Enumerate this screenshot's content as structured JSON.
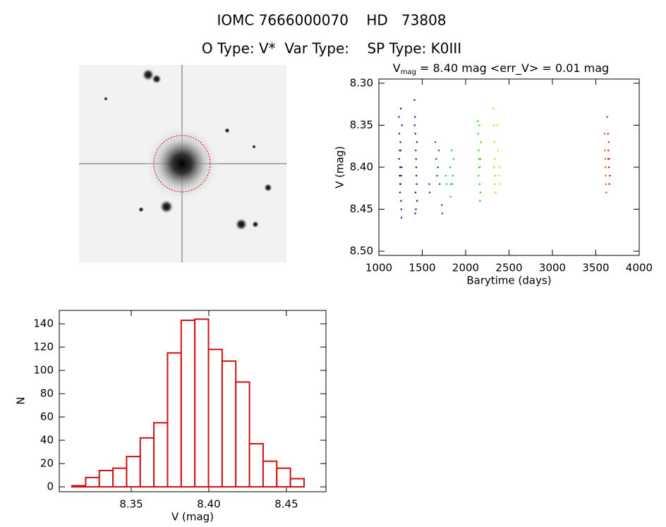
{
  "header": {
    "line1": "IOMC 7666000070    HD   73808",
    "line2": "O Type: V*  Var Type:    SP Type: K0III"
  },
  "chart_data": [
    {
      "type": "scatter",
      "title": {
        "main": "V",
        "sub": "mag",
        "rest": " = 8.40 mag <err_V> = 0.01 mag"
      },
      "x_label": "Barytime (days)",
      "y_label": "V (mag)",
      "xlim": [
        1000,
        4000
      ],
      "xticks": [
        1000,
        1500,
        2000,
        2500,
        3000,
        3500,
        4000
      ],
      "ylim": [
        8.505,
        8.295
      ],
      "yticks": [
        {
          "value": 8.3,
          "label": "8.30"
        },
        {
          "value": 8.35,
          "label": "8.35"
        },
        {
          "value": 8.4,
          "label": "8.40"
        },
        {
          "value": 8.45,
          "label": "8.45"
        },
        {
          "value": 8.5,
          "label": "8.50"
        }
      ],
      "series": [
        {
          "color": "#55007f",
          "x": [
            1230,
            1235,
            1240,
            1245,
            1250,
            1255,
            1260,
            1265,
            1232,
            1238,
            1242,
            1248,
            1252,
            1258,
            1262,
            1244,
            1250,
            1256
          ],
          "values": [
            8.34,
            8.36,
            8.38,
            8.4,
            8.42,
            8.44,
            8.46,
            8.35,
            8.39,
            8.41,
            8.43,
            8.37,
            8.33,
            8.45,
            8.4,
            8.42,
            8.38,
            8.41
          ]
        },
        {
          "color": "#4a00a8",
          "x": [
            1410,
            1415,
            1420,
            1425,
            1430,
            1435,
            1440,
            1418,
            1428,
            1432,
            1422,
            1438,
            1412,
            1426
          ],
          "values": [
            8.32,
            8.34,
            8.36,
            8.38,
            8.4,
            8.42,
            8.44,
            8.455,
            8.39,
            8.41,
            8.43,
            8.37,
            8.35,
            8.45
          ]
        },
        {
          "color": "#1848c8",
          "x": [
            1580,
            1585,
            1650,
            1660,
            1670,
            1680,
            1690,
            1700,
            1725,
            1730
          ],
          "values": [
            8.42,
            8.43,
            8.37,
            8.39,
            8.41,
            8.4,
            8.38,
            8.42,
            8.445,
            8.455
          ]
        },
        {
          "color": "#20b0e8",
          "x": [
            1770,
            1780,
            1820,
            1830,
            1840,
            1850,
            1860,
            1825,
            1845
          ],
          "values": [
            8.41,
            8.42,
            8.4,
            8.42,
            8.38,
            8.41,
            8.39,
            8.435,
            8.42
          ]
        },
        {
          "color": "#20e020",
          "x": [
            2140,
            2145,
            2150,
            2155,
            2160,
            2165,
            2170,
            2175,
            2148,
            2158,
            2168,
            2152,
            2162
          ],
          "values": [
            8.345,
            8.36,
            8.38,
            8.4,
            8.42,
            8.44,
            8.39,
            8.37,
            8.41,
            8.35,
            8.43,
            8.39,
            8.4
          ]
        },
        {
          "color": "#a8e020",
          "x": [
            2320,
            2325,
            2330,
            2335,
            2340,
            2345,
            2328,
            2338
          ],
          "values": [
            8.33,
            8.35,
            8.37,
            8.39,
            8.41,
            8.43,
            8.4,
            8.42
          ]
        },
        {
          "color": "#e8e000",
          "x": [
            2360,
            2370,
            2380,
            2390,
            2395
          ],
          "values": [
            8.35,
            8.38,
            8.41,
            8.4,
            8.42
          ]
        },
        {
          "color": "#e86010",
          "x": [
            3600,
            3605,
            3610,
            3615,
            3620,
            3608,
            3612
          ],
          "values": [
            8.36,
            8.38,
            8.4,
            8.42,
            8.43,
            8.39,
            8.41
          ]
        },
        {
          "color": "#d02010",
          "x": [
            3630,
            3640,
            3645,
            3650,
            3655,
            3660,
            3648,
            3652,
            3642
          ],
          "values": [
            8.34,
            8.36,
            8.38,
            8.4,
            8.42,
            8.41,
            8.37,
            8.39,
            8.39
          ]
        }
      ]
    },
    {
      "type": "histogram",
      "color": "#d01010",
      "x_label": "V (mag)",
      "y_label": "N",
      "xlim": [
        8.3036,
        8.4755
      ],
      "xticks": [
        {
          "value": 8.35,
          "label": "8.35"
        },
        {
          "value": 8.4,
          "label": "8.40"
        },
        {
          "value": 8.45,
          "label": "8.45"
        }
      ],
      "ylim": [
        -4.2,
        151.5
      ],
      "yticks": [
        0,
        20,
        40,
        60,
        80,
        100,
        120,
        140
      ],
      "bins": [
        8.3118,
        8.3206,
        8.3294,
        8.3382,
        8.347,
        8.3558,
        8.3646,
        8.3734,
        8.3822,
        8.391,
        8.3998,
        8.4086,
        8.4174,
        8.4262,
        8.435,
        8.4438,
        8.4526,
        8.4614
      ],
      "values": [
        1,
        8,
        14,
        16,
        26,
        42,
        55,
        115,
        143,
        144,
        118,
        108,
        90,
        37,
        22,
        16,
        7
      ]
    }
  ]
}
